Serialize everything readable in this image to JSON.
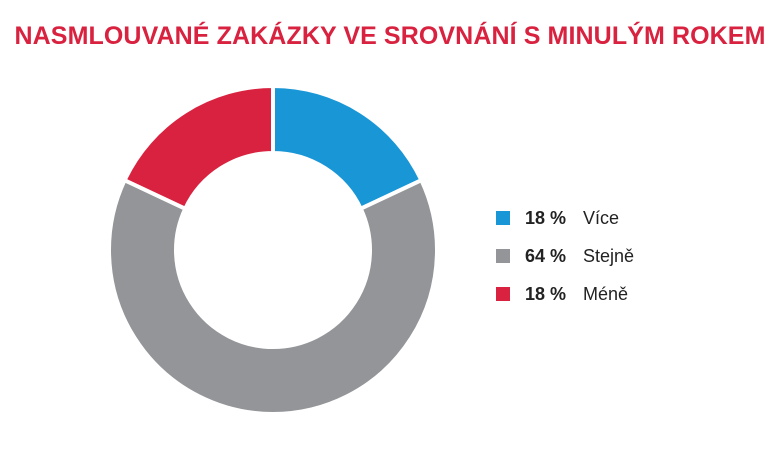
{
  "chart_data": {
    "type": "pie",
    "title": "NASMLOUVANÉ ZAKÁZKY VE SROVNÁNÍ S MINULÝM ROKEM",
    "donut": true,
    "legend_position": "right",
    "slices": [
      {
        "label": "Více",
        "value": 18,
        "display": "18 %",
        "color": "#1996d6"
      },
      {
        "label": "Stejně",
        "value": 64,
        "display": "64 %",
        "color": "#939598"
      },
      {
        "label": "Méně",
        "value": 18,
        "display": "18 %",
        "color": "#d8223f"
      }
    ]
  },
  "colors": {
    "title": "#d8223f"
  }
}
